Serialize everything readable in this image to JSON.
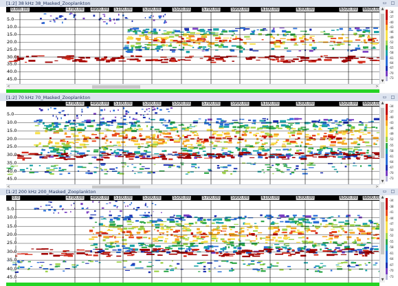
{
  "panels": [
    {
      "title": "[1:2] 38 kHz 38_Masked_Zooplankton",
      "ruler": [
        {
          "label": "0.0m (0)",
          "x": 20
        },
        {
          "label": "4700.00",
          "x": 100
        },
        {
          "label": "4900.00",
          "x": 136
        },
        {
          "label": "5100.00",
          "x": 170
        },
        {
          "label": "5300.00",
          "x": 212
        },
        {
          "label": "5500.00",
          "x": 255
        },
        {
          "label": "5700.00",
          "x": 298
        },
        {
          "label": "5900.00",
          "x": 340
        },
        {
          "label": "6100.00",
          "x": 384
        },
        {
          "label": "6300.00",
          "x": 435
        },
        {
          "label": "6500.00",
          "x": 498
        },
        {
          "label": "6600.00",
          "x": 532
        }
      ],
      "y_labels": [
        "5.0",
        "10.0",
        "15.0",
        "20.0",
        "25.0",
        "30.0",
        "35.0",
        "40.0",
        "45.0"
      ],
      "colorbar_values": [
        "-34",
        "-37",
        "-40",
        "-43",
        "-46",
        "-49",
        "-52",
        "-55",
        "-58",
        "-61",
        "-64",
        "-67",
        "-70",
        "-73"
      ],
      "hscroll": true
    },
    {
      "title": "[1:2] 70 kHz 70_Masked_Zooplankton",
      "ruler": [
        {
          "label": "4700.00",
          "x": 100
        },
        {
          "label": "4900.00",
          "x": 136
        },
        {
          "label": "5100.00",
          "x": 170
        },
        {
          "label": "5300.00",
          "x": 212
        },
        {
          "label": "5500.00",
          "x": 255
        },
        {
          "label": "5700.00",
          "x": 298
        },
        {
          "label": "5900.00",
          "x": 340
        },
        {
          "label": "6100.00",
          "x": 384
        },
        {
          "label": "6300.00",
          "x": 435
        },
        {
          "label": "6500.00",
          "x": 498
        },
        {
          "label": "6600.00",
          "x": 532
        }
      ],
      "y_labels": [
        "5.0",
        "10.0",
        "15.0",
        "20.0",
        "25.0",
        "30.0",
        "35.0",
        "40.0",
        "45.0"
      ],
      "colorbar_values": [
        "-34",
        "-37",
        "-40",
        "-43",
        "-46",
        "-49",
        "-52",
        "-55",
        "-58",
        "-61",
        "-64",
        "-67",
        "-70",
        "-73"
      ],
      "hscroll": true
    },
    {
      "title": "[1:2] 200 kHz 200_Masked_Zooplankton",
      "ruler": [
        {
          "label": "0.0",
          "x": 14
        },
        {
          "label": "4700.00",
          "x": 100
        },
        {
          "label": "4900.00",
          "x": 136
        },
        {
          "label": "5100.00",
          "x": 170
        },
        {
          "label": "5300.00",
          "x": 212
        },
        {
          "label": "5500.00",
          "x": 255
        },
        {
          "label": "5700.00",
          "x": 298
        },
        {
          "label": "5900.00",
          "x": 340
        },
        {
          "label": "6100.00",
          "x": 384
        },
        {
          "label": "6300.00",
          "x": 435
        },
        {
          "label": "6500.00",
          "x": 498
        },
        {
          "label": "6600.00",
          "x": 532
        }
      ],
      "y_labels": [
        "5.0",
        "10.0",
        "15.0",
        "20.0",
        "25.0",
        "30.0",
        "35.0",
        "40.0",
        "45.0"
      ],
      "colorbar_values": [
        "-34",
        "-38",
        "-41",
        "-44",
        "-47",
        "-50",
        "-52",
        "-55",
        "-58",
        "-61",
        "-64",
        "-67",
        "-70",
        "-73"
      ],
      "hscroll": false
    }
  ],
  "window_buttons": {
    "minimize": "▭",
    "maximize": "□"
  },
  "scroll_arrows": {
    "up": "▲",
    "down": "▼",
    "left": "<",
    "right": ">"
  },
  "colors": {
    "titlebar": "#dde4f0",
    "ruler_bg": "#000000",
    "gridline": "#000000",
    "seabed_line": "#24d324",
    "bottom_echo": "#a00000"
  }
}
